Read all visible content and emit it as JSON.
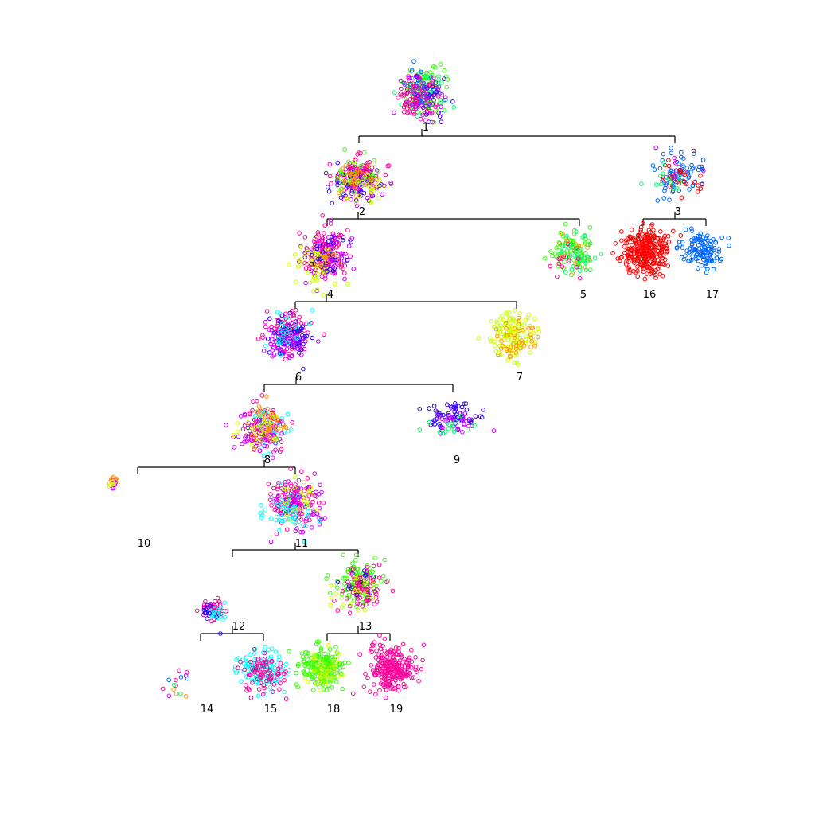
{
  "colors": {
    "red": "#ff0000",
    "orange": "#ff9900",
    "yellow": "#ccff00",
    "green": "#33ff00",
    "spring": "#00ff66",
    "cyan": "#00ffff",
    "azure": "#0066ff",
    "blue": "#3300ff",
    "violet": "#cc00ff",
    "pink": "#ff0099"
  },
  "nodes": [
    {
      "id": "1",
      "label": "1"
    },
    {
      "id": "2",
      "label": "2"
    },
    {
      "id": "3",
      "label": "3"
    },
    {
      "id": "4",
      "label": "4"
    },
    {
      "id": "5",
      "label": "5"
    },
    {
      "id": "6",
      "label": "6"
    },
    {
      "id": "7",
      "label": "7"
    },
    {
      "id": "8",
      "label": "8"
    },
    {
      "id": "9",
      "label": "9"
    },
    {
      "id": "10",
      "label": "10"
    },
    {
      "id": "11",
      "label": "11"
    },
    {
      "id": "12",
      "label": "12"
    },
    {
      "id": "13",
      "label": "13"
    },
    {
      "id": "14",
      "label": "14"
    },
    {
      "id": "15",
      "label": "15"
    },
    {
      "id": "16",
      "label": "16"
    },
    {
      "id": "17",
      "label": "17"
    },
    {
      "id": "18",
      "label": "18"
    },
    {
      "id": "19",
      "label": "19"
    }
  ],
  "edges": [
    {
      "parent": "1",
      "children": [
        "2",
        "3"
      ]
    },
    {
      "parent": "2",
      "children": [
        "4",
        "5"
      ]
    },
    {
      "parent": "3",
      "children": [
        "16",
        "17"
      ]
    },
    {
      "parent": "4",
      "children": [
        "6",
        "7"
      ]
    },
    {
      "parent": "6",
      "children": [
        "8",
        "9"
      ]
    },
    {
      "parent": "8",
      "children": [
        "10",
        "11"
      ]
    },
    {
      "parent": "11",
      "children": [
        "12",
        "13"
      ]
    },
    {
      "parent": "12",
      "children": [
        "14",
        "15"
      ]
    },
    {
      "parent": "13",
      "children": [
        "18",
        "19"
      ]
    }
  ],
  "clusters": {
    "1": [
      [
        "green",
        0.3
      ],
      [
        "spring",
        0.15
      ],
      [
        "pink",
        0.3
      ],
      [
        "azure",
        0.1
      ],
      [
        "violet",
        0.1
      ],
      [
        "blue",
        0.05
      ]
    ],
    "2": [
      [
        "pink",
        0.35
      ],
      [
        "violet",
        0.2
      ],
      [
        "blue",
        0.15
      ],
      [
        "green",
        0.1
      ],
      [
        "orange",
        0.1
      ],
      [
        "yellow",
        0.1
      ]
    ],
    "3": [
      [
        "azure",
        0.6
      ],
      [
        "red",
        0.25
      ],
      [
        "spring",
        0.1
      ],
      [
        "violet",
        0.05
      ]
    ],
    "4": [
      [
        "pink",
        0.4
      ],
      [
        "violet",
        0.25
      ],
      [
        "yellow",
        0.2
      ],
      [
        "blue",
        0.1
      ],
      [
        "orange",
        0.05
      ]
    ],
    "5": [
      [
        "green",
        0.5
      ],
      [
        "spring",
        0.3
      ],
      [
        "pink",
        0.1
      ],
      [
        "orange",
        0.1
      ]
    ],
    "6": [
      [
        "pink",
        0.4
      ],
      [
        "blue",
        0.3
      ],
      [
        "violet",
        0.2
      ],
      [
        "cyan",
        0.1
      ]
    ],
    "7": [
      [
        "yellow",
        0.75
      ],
      [
        "orange",
        0.25
      ]
    ],
    "8": [
      [
        "pink",
        0.4
      ],
      [
        "cyan",
        0.15
      ],
      [
        "violet",
        0.2
      ],
      [
        "orange",
        0.15
      ],
      [
        "yellow",
        0.1
      ]
    ],
    "9": [
      [
        "blue",
        0.55
      ],
      [
        "violet",
        0.3
      ],
      [
        "spring",
        0.15
      ]
    ],
    "10": [
      [
        "orange",
        0.6
      ],
      [
        "violet",
        0.2
      ],
      [
        "yellow",
        0.2
      ]
    ],
    "11": [
      [
        "pink",
        0.4
      ],
      [
        "violet",
        0.3
      ],
      [
        "cyan",
        0.2
      ],
      [
        "yellow",
        0.1
      ]
    ],
    "12": [
      [
        "pink",
        0.6
      ],
      [
        "cyan",
        0.25
      ],
      [
        "blue",
        0.15
      ]
    ],
    "13": [
      [
        "green",
        0.5
      ],
      [
        "pink",
        0.35
      ],
      [
        "yellow",
        0.1
      ],
      [
        "blue",
        0.05
      ]
    ],
    "14": [
      [
        "pink",
        0.3
      ],
      [
        "azure",
        0.2
      ],
      [
        "orange",
        0.2
      ],
      [
        "spring",
        0.15
      ],
      [
        "violet",
        0.15
      ]
    ],
    "15": [
      [
        "cyan",
        0.6
      ],
      [
        "pink",
        0.4
      ]
    ],
    "16": [
      [
        "red",
        1.0
      ]
    ],
    "17": [
      [
        "azure",
        1.0
      ]
    ],
    "18": [
      [
        "green",
        0.8
      ],
      [
        "yellow",
        0.2
      ]
    ],
    "19": [
      [
        "pink",
        1.0
      ]
    ]
  }
}
